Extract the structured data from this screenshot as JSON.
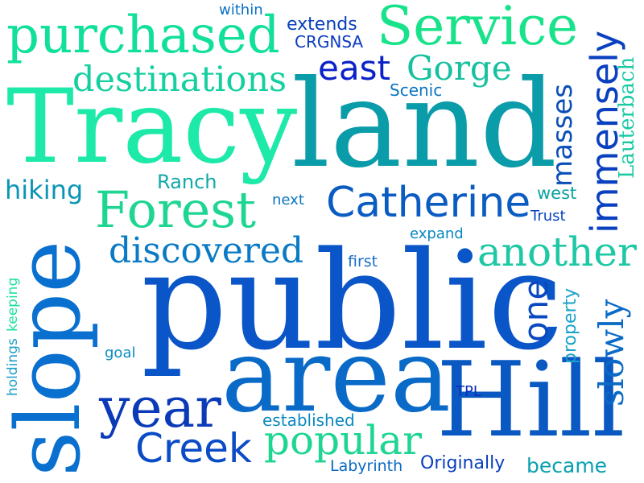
{
  "words": [
    {
      "text": "Tracy",
      "color": "#1de9a8"
    },
    {
      "text": "land",
      "color": "#0a9ca9"
    },
    {
      "text": "public",
      "color": "#0a56c8"
    },
    {
      "text": "area",
      "color": "#0a6ac8"
    },
    {
      "text": "Hill",
      "color": "#0a58c2"
    },
    {
      "text": "slope",
      "color": "#0a70d0"
    },
    {
      "text": "purchased",
      "color": "#11e09a"
    },
    {
      "text": "Service",
      "color": "#19e38a"
    },
    {
      "text": "Forest",
      "color": "#1ed692"
    },
    {
      "text": "Catherine",
      "color": "#0b5cc2"
    },
    {
      "text": "Gorge",
      "color": "#17c1a0"
    },
    {
      "text": "east",
      "color": "#0a22c8"
    },
    {
      "text": "destinations",
      "color": "#15cfa0"
    },
    {
      "text": "discovered",
      "color": "#0a7ac4"
    },
    {
      "text": "another",
      "color": "#1ec8a4"
    },
    {
      "text": "year",
      "color": "#0a3ab8"
    },
    {
      "text": "Creek",
      "color": "#0a4bc6"
    },
    {
      "text": "popular",
      "color": "#1ed692"
    },
    {
      "text": "immensely",
      "color": "#0a40c0"
    },
    {
      "text": "masses",
      "color": "#0a4fb8"
    },
    {
      "text": "Lauterbach",
      "color": "#19c9a2"
    },
    {
      "text": "one",
      "color": "#0a48c0"
    },
    {
      "text": "slowly",
      "color": "#0a6ac6"
    },
    {
      "text": "property",
      "color": "#1aa2c8"
    },
    {
      "text": "hiking",
      "color": "#0a95b5"
    },
    {
      "text": "Ranch",
      "color": "#13a9a8"
    },
    {
      "text": "next",
      "color": "#0a76bd"
    },
    {
      "text": "west",
      "color": "#0aa2a0"
    },
    {
      "text": "Trust",
      "color": "#0a42c0"
    },
    {
      "text": "expand",
      "color": "#0a88c0"
    },
    {
      "text": "first",
      "color": "#1a6cc9"
    },
    {
      "text": "within",
      "color": "#0a70c2"
    },
    {
      "text": "extends",
      "color": "#0a40b8"
    },
    {
      "text": "CRGNSA",
      "color": "#0a3ac0"
    },
    {
      "text": "Scenic",
      "color": "#0a75c3"
    },
    {
      "text": "holdings",
      "color": "#1d9ec6"
    },
    {
      "text": "keeping",
      "color": "#1de0a0"
    },
    {
      "text": "goal",
      "color": "#0a8cc0"
    },
    {
      "text": "TPL",
      "color": "#0a2ec0"
    },
    {
      "text": "established",
      "color": "#0a89c0"
    },
    {
      "text": "Labyrinth",
      "color": "#0a69c3"
    },
    {
      "text": "Originally",
      "color": "#0a3ebe"
    },
    {
      "text": "became",
      "color": "#0aa0b0"
    }
  ]
}
